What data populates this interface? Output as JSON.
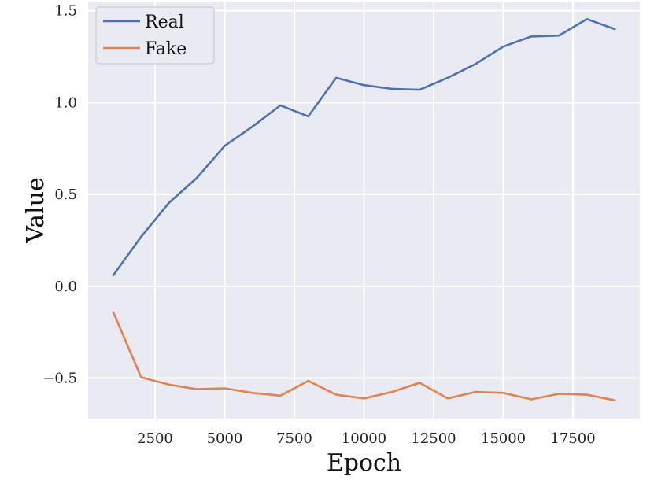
{
  "chart_data": {
    "type": "line",
    "title": "",
    "xlabel": "Epoch",
    "ylabel": "Value",
    "x": [
      1000,
      2000,
      3000,
      4000,
      5000,
      6000,
      7000,
      8000,
      9000,
      10000,
      11000,
      12000,
      13000,
      14000,
      15000,
      16000,
      17000,
      18000,
      19000
    ],
    "series": [
      {
        "name": "Real",
        "color": "#4c72b0",
        "values": [
          0.06,
          0.27,
          0.455,
          0.59,
          0.765,
          0.87,
          0.985,
          0.925,
          1.135,
          1.095,
          1.075,
          1.07,
          1.135,
          1.21,
          1.305,
          1.36,
          1.365,
          1.455,
          1.4
        ]
      },
      {
        "name": "Fake",
        "color": "#dd8452",
        "values": [
          -0.14,
          -0.495,
          -0.535,
          -0.56,
          -0.555,
          -0.58,
          -0.595,
          -0.515,
          -0.59,
          -0.61,
          -0.575,
          -0.525,
          -0.61,
          -0.575,
          -0.58,
          -0.615,
          -0.585,
          -0.59,
          -0.62
        ]
      }
    ],
    "xticks": [
      2500,
      5000,
      7500,
      10000,
      12500,
      15000,
      17500
    ],
    "xtick_labels": [
      "2500",
      "5000",
      "7500",
      "10000",
      "12500",
      "15000",
      "17500"
    ],
    "yticks": [
      -0.5,
      0.0,
      0.5,
      1.0,
      1.5
    ],
    "ytick_labels": [
      "−0.5",
      "0.0",
      "0.5",
      "1.0",
      "1.5"
    ],
    "xlim": [
      100,
      19900
    ],
    "ylim": [
      -0.72,
      1.55
    ],
    "grid": true,
    "background_color": "#eaeaf2",
    "grid_color": "#ffffff",
    "legend_position": "top-left"
  }
}
